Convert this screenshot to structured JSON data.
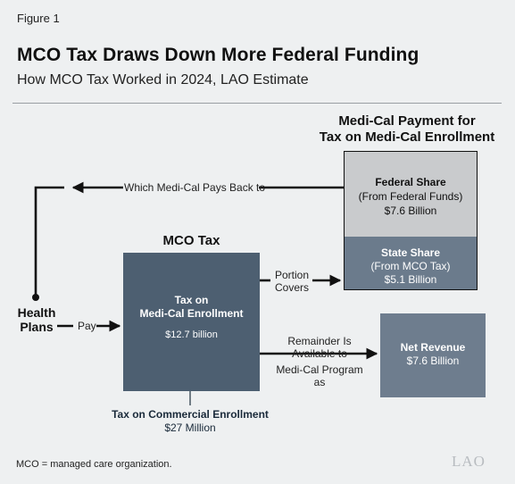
{
  "header": {
    "figure_label": "Figure 1",
    "title": "MCO Tax Draws Down More Federal Funding",
    "subtitle": "How MCO Tax Worked in 2024, LAO Estimate"
  },
  "payment": {
    "heading_line1": "Medi-Cal Payment for",
    "heading_line2": "Tax on Medi-Cal Enrollment",
    "federal": {
      "title": "Federal Share",
      "source": "(From Federal Funds)",
      "amount": "$7.6 Billion"
    },
    "state": {
      "title": "State Share",
      "source": "(From MCO Tax)",
      "amount": "$5.1 Billion"
    }
  },
  "mco_tax": {
    "heading": "MCO Tax",
    "medi_cal_line1": "Tax on",
    "medi_cal_line2": "Medi-Cal Enrollment",
    "medi_cal_amount": "$12.7 billion",
    "commercial_title": "Tax on Commercial Enrollment",
    "commercial_amount": "$27 Million"
  },
  "health_plans": {
    "line1": "Health",
    "line2": "Plans"
  },
  "net_revenue": {
    "title": "Net Revenue",
    "amount": "$7.6 Billion"
  },
  "arrows": {
    "pays_back": "Which Medi-Cal Pays Back to",
    "pay": "Pay",
    "portion_line1": "Portion",
    "portion_line2": "Covers",
    "remainder_line1": "Remainder Is",
    "remainder_line2": "Available to",
    "remainder_line3": "Medi-Cal Program as"
  },
  "footer": {
    "note": "MCO = managed care organization.",
    "logo_text": "LAO"
  },
  "colors": {
    "federal_box": "#c9cbcd",
    "state_box": "#6b7b8c",
    "mco_box": "#4d5f71",
    "net_box": "#6e7d8e",
    "background": "#eef0f1"
  }
}
